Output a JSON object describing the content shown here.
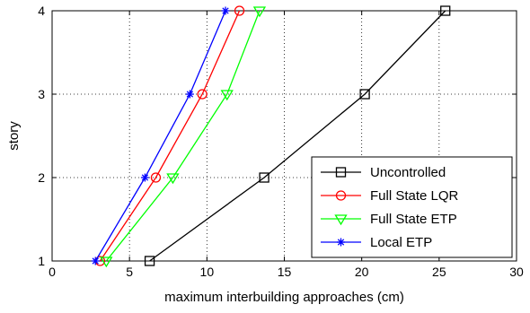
{
  "chart_data": {
    "type": "line",
    "xlabel": "maximum interbuilding approaches (cm)",
    "ylabel": "story",
    "xlim": [
      0,
      30
    ],
    "ylim": [
      1,
      4
    ],
    "xticks": [
      0,
      5,
      10,
      15,
      20,
      25,
      30
    ],
    "yticks": [
      1,
      2,
      3,
      4
    ],
    "grid": true,
    "legend_position": "bottom-right",
    "series": [
      {
        "name": "Uncontrolled",
        "color": "#000000",
        "marker": "square",
        "points": [
          [
            6.3,
            1
          ],
          [
            13.7,
            2
          ],
          [
            20.2,
            3
          ],
          [
            25.4,
            4
          ]
        ]
      },
      {
        "name": "Full State LQR",
        "color": "#ff0000",
        "marker": "circle",
        "points": [
          [
            3.1,
            1
          ],
          [
            6.7,
            2
          ],
          [
            9.7,
            3
          ],
          [
            12.1,
            4
          ]
        ]
      },
      {
        "name": "Full State ETP",
        "color": "#00ff00",
        "marker": "triangle-down",
        "points": [
          [
            3.5,
            1
          ],
          [
            7.8,
            2
          ],
          [
            11.3,
            3
          ],
          [
            13.4,
            4
          ]
        ]
      },
      {
        "name": "Local ETP",
        "color": "#0000ff",
        "marker": "star",
        "points": [
          [
            2.8,
            1
          ],
          [
            6.0,
            2
          ],
          [
            8.9,
            3
          ],
          [
            11.2,
            4
          ]
        ]
      }
    ]
  }
}
